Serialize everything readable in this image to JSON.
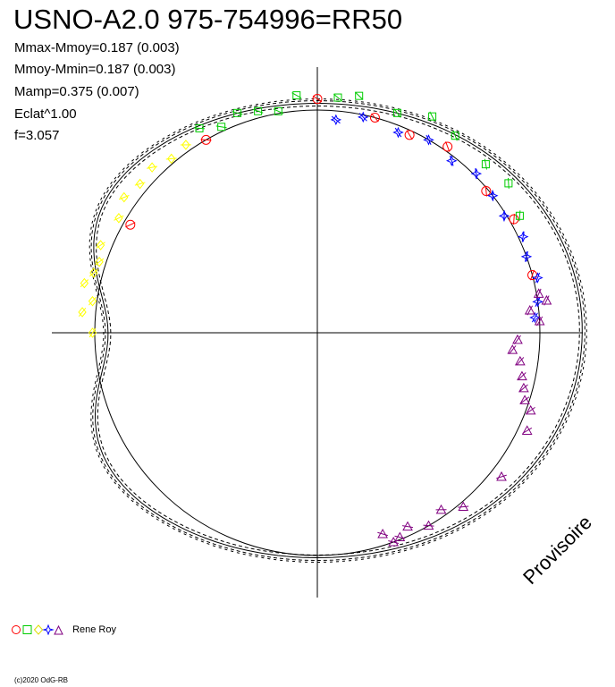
{
  "header": {
    "title": "USNO-A2.0 975-754996=RR50",
    "stats": [
      "Mmax-Mmoy=0.187 (0.003)",
      "Mmoy-Mmin=0.187 (0.003)",
      "Mamp=0.375 (0.007)",
      "Eclat^1.00",
      "f=3.057"
    ]
  },
  "legend": {
    "label": "Rene Roy"
  },
  "footer": {
    "copyright": "(c)2020 OdG-RB",
    "watermark": "Provisoire"
  },
  "chart_data": {
    "type": "polar-phase",
    "axes": {
      "reference_circle": true,
      "crosshair": true,
      "grid": false
    },
    "series": [
      {
        "symbol": "circle",
        "color": "#ff0000",
        "points": [
          [
            0.97,
            300
          ],
          [
            1.0,
            330
          ],
          [
            1.05,
            0
          ],
          [
            1.0,
            15
          ],
          [
            0.98,
            25
          ],
          [
            1.02,
            35
          ],
          [
            0.99,
            50
          ],
          [
            1.02,
            60
          ],
          [
            1.0,
            75
          ]
        ]
      },
      {
        "symbol": "square",
        "color": "#00cc00",
        "points": [
          [
            1.07,
            355
          ],
          [
            1.06,
            5
          ],
          [
            1.08,
            10
          ],
          [
            1.05,
            20
          ],
          [
            1.1,
            28
          ],
          [
            1.08,
            35
          ],
          [
            1.07,
            45
          ],
          [
            1.09,
            52
          ],
          [
            1.05,
            60
          ],
          [
            1.06,
            330
          ],
          [
            1.02,
            335
          ],
          [
            1.05,
            340
          ],
          [
            1.03,
            345
          ],
          [
            1.01,
            350
          ]
        ]
      },
      {
        "symbol": "diamond",
        "color": "#ffff00",
        "points": [
          [
            1.01,
            270
          ],
          [
            1.02,
            278
          ],
          [
            1.04,
            285
          ],
          [
            1.05,
            292
          ],
          [
            1.03,
            300
          ],
          [
            1.06,
            305
          ],
          [
            1.04,
            310
          ],
          [
            1.05,
            315
          ],
          [
            1.02,
            320
          ],
          [
            1.03,
            325
          ],
          [
            1.06,
            275
          ],
          [
            1.07,
            282
          ],
          [
            1.03,
            288
          ]
        ]
      },
      {
        "symbol": "star",
        "color": "#0000ff",
        "points": [
          [
            0.96,
            5
          ],
          [
            0.99,
            12
          ],
          [
            0.97,
            22
          ],
          [
            1.0,
            30
          ],
          [
            0.98,
            38
          ],
          [
            1.01,
            45
          ],
          [
            1.0,
            52
          ],
          [
            0.99,
            58
          ],
          [
            1.02,
            65
          ],
          [
            1.0,
            70
          ],
          [
            1.02,
            76
          ],
          [
            1.0,
            82
          ],
          [
            0.98,
            86
          ]
        ]
      },
      {
        "symbol": "triangle",
        "color": "#800080",
        "points": [
          [
            1.01,
            80
          ],
          [
            1.04,
            82
          ],
          [
            0.96,
            84
          ],
          [
            1.0,
            87
          ],
          [
            0.9,
            92
          ],
          [
            0.88,
            95
          ],
          [
            0.92,
            98
          ],
          [
            0.94,
            102
          ],
          [
            0.96,
            105
          ],
          [
            0.98,
            108
          ],
          [
            1.02,
            110
          ],
          [
            1.04,
            115
          ],
          [
            0.97,
            145
          ],
          [
            1.0,
            150
          ],
          [
            0.96,
            155
          ],
          [
            0.99,
            158
          ],
          [
            1.0,
            160
          ],
          [
            0.95,
            162
          ],
          [
            1.02,
            140
          ],
          [
            1.05,
            128
          ]
        ]
      }
    ]
  }
}
